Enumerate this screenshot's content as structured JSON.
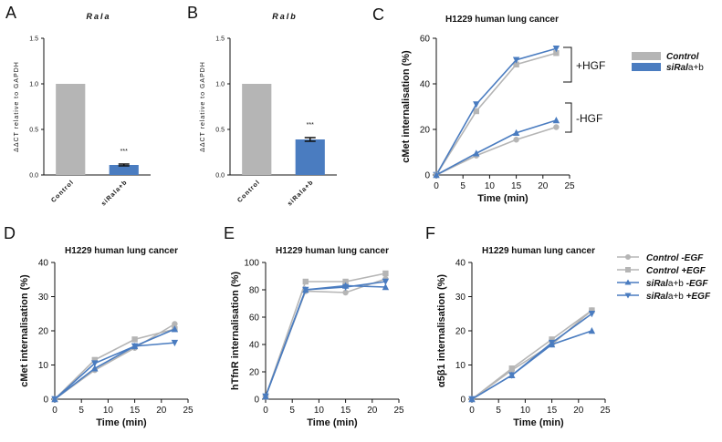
{
  "panels": {
    "A": {
      "label": "A"
    },
    "B": {
      "label": "B"
    },
    "C": {
      "label": "C"
    },
    "D": {
      "label": "D"
    },
    "E": {
      "label": "E"
    },
    "F": {
      "label": "F"
    }
  },
  "legend_c": {
    "control": "Control",
    "sirala_prefix": "siRal",
    "sirala_suffix": "a+b",
    "hgf_plus": "+HGF",
    "hgf_minus": "-HGF"
  },
  "legend_f": {
    "ctrl_minus": "Control -EGF",
    "ctrl_plus": "Control +EGF",
    "si_minus_prefix": "siRal",
    "si_minus_suffix": "a+b",
    "si_minus_tail": " -EGF",
    "si_plus_prefix": "siRal",
    "si_plus_suffix": "a+b",
    "si_plus_tail": " +EGF"
  },
  "colors": {
    "gray": "#b5b5b5",
    "blue": "#4a7cc0",
    "axis": "#111111"
  },
  "chart_data": [
    {
      "panel": "A",
      "type": "bar",
      "title": "Rala",
      "categories": [
        "Control",
        "siRala+b"
      ],
      "values": [
        1.0,
        0.11
      ],
      "errors": [
        0,
        0.01
      ],
      "annotations": [
        "",
        "***"
      ],
      "ylabel": "ΔΔCT relative to GAPDH",
      "ylim": [
        0,
        1.5
      ],
      "yticks": [
        "0.0",
        "0.5",
        "1.0",
        "1.5"
      ],
      "bar_colors": [
        "gray",
        "blue"
      ]
    },
    {
      "panel": "B",
      "type": "bar",
      "title": "Ralb",
      "categories": [
        "Control",
        "siRala+b"
      ],
      "values": [
        1.0,
        0.39
      ],
      "errors": [
        0,
        0.02
      ],
      "annotations": [
        "",
        "***"
      ],
      "ylabel": "ΔΔCT relative to GAPDH",
      "ylim": [
        0,
        1.5
      ],
      "yticks": [
        "0.0",
        "0.5",
        "1.0",
        "1.5"
      ],
      "bar_colors": [
        "gray",
        "blue"
      ]
    },
    {
      "panel": "C",
      "type": "line",
      "title": "H1229 human lung cancer",
      "xlabel": "Time (min)",
      "ylabel": "cMet internalisation (%)",
      "xlim": [
        0,
        25
      ],
      "ylim": [
        0,
        60
      ],
      "xticks": [
        "0",
        "5",
        "10",
        "15",
        "20",
        "25"
      ],
      "yticks": [
        "0",
        "20",
        "40",
        "60"
      ],
      "series": [
        {
          "name": "Control +HGF",
          "color": "gray",
          "marker": "square",
          "x": [
            0,
            7.5,
            15,
            22.5
          ],
          "y": [
            0,
            28,
            48.5,
            53.5
          ]
        },
        {
          "name": "siRala+b +HGF",
          "color": "blue",
          "marker": "tri-down",
          "x": [
            0,
            7.5,
            15,
            22.5
          ],
          "y": [
            0,
            31,
            50.5,
            55.5
          ]
        },
        {
          "name": "Control -HGF",
          "color": "gray",
          "marker": "circle",
          "x": [
            0,
            7.5,
            15,
            22.5
          ],
          "y": [
            0,
            8.5,
            15.5,
            21
          ]
        },
        {
          "name": "siRala+b -HGF",
          "color": "blue",
          "marker": "tri-up",
          "x": [
            0,
            7.5,
            15,
            22.5
          ],
          "y": [
            0,
            9.5,
            18.5,
            24
          ]
        }
      ]
    },
    {
      "panel": "D",
      "type": "line",
      "title": "H1229 human lung cancer",
      "xlabel": "Time (min)",
      "ylabel": "cMet internalisation (%)",
      "xlim": [
        0,
        25
      ],
      "ylim": [
        0,
        40
      ],
      "xticks": [
        "0",
        "5",
        "10",
        "15",
        "20",
        "25"
      ],
      "yticks": [
        "0",
        "10",
        "20",
        "30",
        "40"
      ],
      "series": [
        {
          "name": "Control -EGF",
          "color": "gray",
          "marker": "circle",
          "x": [
            0,
            7.5,
            15,
            22.5
          ],
          "y": [
            0,
            8.5,
            15,
            22
          ]
        },
        {
          "name": "Control +EGF",
          "color": "gray",
          "marker": "square",
          "x": [
            0,
            7.5,
            15,
            22.5
          ],
          "y": [
            0,
            11.5,
            17.5,
            20.5
          ]
        },
        {
          "name": "siRala+b -EGF",
          "color": "blue",
          "marker": "tri-up",
          "x": [
            0,
            7.5,
            15,
            22.5
          ],
          "y": [
            0,
            9,
            15.5,
            20.5
          ]
        },
        {
          "name": "siRala+b +EGF",
          "color": "blue",
          "marker": "tri-down",
          "x": [
            0,
            7.5,
            15,
            22.5
          ],
          "y": [
            0,
            10.5,
            15.5,
            16.5
          ]
        }
      ]
    },
    {
      "panel": "E",
      "type": "line",
      "title": "H1229 human lung cancer",
      "xlabel": "Time (min)",
      "ylabel": "hTfnR internalisation (%)",
      "xlim": [
        0,
        25
      ],
      "ylim": [
        0,
        100
      ],
      "xticks": [
        "0",
        "5",
        "10",
        "15",
        "20",
        "25"
      ],
      "yticks": [
        "0",
        "20",
        "40",
        "60",
        "80",
        "100"
      ],
      "series": [
        {
          "name": "Control -EGF",
          "color": "gray",
          "marker": "circle",
          "x": [
            0,
            7.5,
            15,
            22.5
          ],
          "y": [
            2,
            79,
            78,
            88
          ]
        },
        {
          "name": "Control +EGF",
          "color": "gray",
          "marker": "square",
          "x": [
            0,
            7.5,
            15,
            22.5
          ],
          "y": [
            2,
            86,
            86,
            92
          ]
        },
        {
          "name": "siRala+b -EGF",
          "color": "blue",
          "marker": "tri-up",
          "x": [
            0,
            7.5,
            15,
            22.5
          ],
          "y": [
            2,
            80,
            83,
            82
          ]
        },
        {
          "name": "siRala+b +EGF",
          "color": "blue",
          "marker": "tri-down",
          "x": [
            0,
            7.5,
            15,
            22.5
          ],
          "y": [
            2,
            80,
            82,
            86
          ]
        }
      ]
    },
    {
      "panel": "F",
      "type": "line",
      "title": "H1229 human lung cancer",
      "xlabel": "Time (min)",
      "ylabel": "α5β1 internalisation (%)",
      "xlim": [
        0,
        25
      ],
      "ylim": [
        0,
        40
      ],
      "xticks": [
        "0",
        "5",
        "10",
        "15",
        "20",
        "25"
      ],
      "yticks": [
        "0",
        "10",
        "20",
        "30",
        "40"
      ],
      "series": [
        {
          "name": "Control -EGF",
          "color": "gray",
          "marker": "circle",
          "x": [
            0,
            7.5,
            15,
            22.5
          ],
          "y": [
            0,
            8.5,
            16,
            26
          ]
        },
        {
          "name": "Control +EGF",
          "color": "gray",
          "marker": "square",
          "x": [
            0,
            7.5,
            15,
            22.5
          ],
          "y": [
            0,
            9,
            17.5,
            26
          ]
        },
        {
          "name": "siRala+b -EGF",
          "color": "blue",
          "marker": "tri-up",
          "x": [
            0,
            7.5,
            15,
            22.5
          ],
          "y": [
            0,
            7,
            16,
            20
          ]
        },
        {
          "name": "siRala+b +EGF",
          "color": "blue",
          "marker": "tri-down",
          "x": [
            0,
            7.5,
            15,
            22.5
          ],
          "y": [
            0,
            7,
            16.5,
            25
          ]
        }
      ]
    }
  ]
}
